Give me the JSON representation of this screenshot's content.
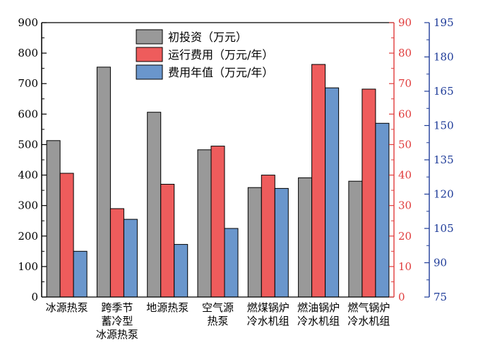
{
  "chart_data": {
    "type": "bar",
    "categories": [
      [
        "冰源热泵"
      ],
      [
        "跨季节",
        "蓄冷型",
        "冰源热泵"
      ],
      [
        "地源热泵"
      ],
      [
        "空气源",
        "热泵"
      ],
      [
        "燃煤锅炉",
        "冷水机组"
      ],
      [
        "燃油锅炉",
        "冷水机组"
      ],
      [
        "燃气锅炉",
        "冷水机组"
      ]
    ],
    "series": [
      {
        "name": "初投资（万元）",
        "axis": "left",
        "color": "#999999",
        "values": [
          513,
          754,
          606,
          483,
          359,
          391,
          380
        ]
      },
      {
        "name": "运行费用（万元/年）",
        "axis": "right1",
        "color": "#EE5C5C",
        "values": [
          40.6,
          29.0,
          37.0,
          49.5,
          40.0,
          76.3,
          68.2
        ]
      },
      {
        "name": "费用年值（万元/年）",
        "axis": "right2",
        "color": "#6A96CC",
        "values": [
          95.0,
          109.0,
          98.0,
          105.0,
          122.5,
          166.5,
          151.0
        ]
      }
    ],
    "axes": {
      "left": {
        "min": 0,
        "max": 900,
        "ticks": [
          "0",
          "100",
          "200",
          "300",
          "400",
          "500",
          "600",
          "700",
          "800",
          "900"
        ],
        "color": "#000000"
      },
      "right1": {
        "min": 0,
        "max": 90,
        "ticks": [
          "0",
          "10",
          "20",
          "30",
          "40",
          "50",
          "60",
          "70",
          "80",
          "90"
        ],
        "color": "#E03C3C"
      },
      "right2": {
        "min": 75,
        "max": 195,
        "ticks": [
          "75",
          "90",
          "105",
          "120",
          "135",
          "150",
          "165",
          "180",
          "195"
        ],
        "color": "#1F3C99"
      }
    },
    "legend_position": "top-center",
    "grid": false
  }
}
